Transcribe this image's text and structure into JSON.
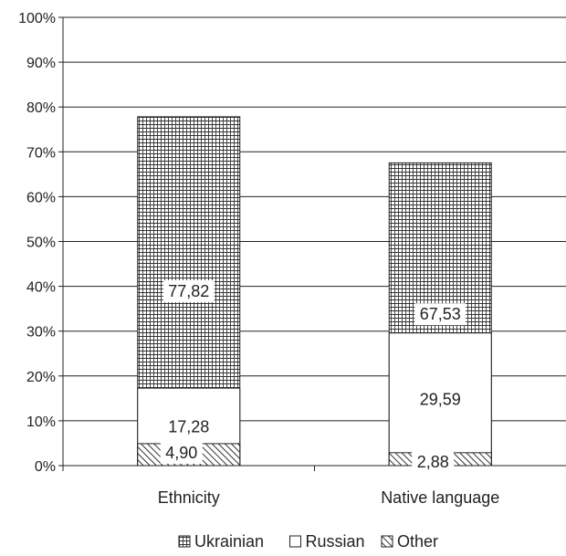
{
  "chart_data": {
    "type": "bar",
    "stacked": true,
    "percent": true,
    "categories": [
      "Ethnicity",
      "Native language"
    ],
    "series": [
      {
        "name": "Ukrainian",
        "values": [
          77.82,
          67.53
        ],
        "labels": [
          "77,82",
          "67,53"
        ],
        "pattern": "grid"
      },
      {
        "name": "Russian",
        "values": [
          17.28,
          29.59
        ],
        "labels": [
          "17,28",
          "29,59"
        ],
        "pattern": "none"
      },
      {
        "name": "Other",
        "values": [
          4.9,
          2.88
        ],
        "labels": [
          "4,90",
          "2,88"
        ],
        "pattern": "hatch"
      }
    ],
    "y_ticks": [
      "0%",
      "10%",
      "20%",
      "30%",
      "40%",
      "50%",
      "60%",
      "70%",
      "80%",
      "90%",
      "100%"
    ],
    "ylim": [
      0,
      100
    ],
    "grid": true,
    "legend_position": "bottom",
    "colors": {
      "ink": "#222222",
      "fill": "#ffffff"
    }
  }
}
